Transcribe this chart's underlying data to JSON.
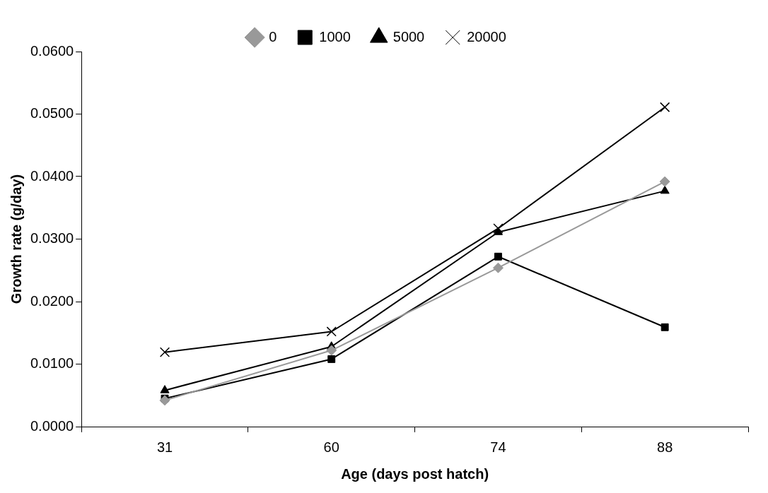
{
  "chart_data": {
    "type": "line",
    "xlabel": "Age (days post hatch)",
    "ylabel": "Growth rate (g/day)",
    "categories": [
      "31",
      "60",
      "74",
      "88"
    ],
    "series": [
      {
        "name": "0",
        "color": "#999999",
        "marker": "diamond",
        "values": [
          0.0042,
          0.0122,
          0.0254,
          0.0392
        ]
      },
      {
        "name": "1000",
        "color": "#000000",
        "marker": "square",
        "values": [
          0.0045,
          0.0108,
          0.0272,
          0.0159
        ]
      },
      {
        "name": "5000",
        "color": "#000000",
        "marker": "triangle",
        "values": [
          0.0058,
          0.0128,
          0.0311,
          0.0377
        ]
      },
      {
        "name": "20000",
        "color": "#000000",
        "marker": "cross",
        "values": [
          0.0119,
          0.0152,
          0.0317,
          0.0511
        ]
      }
    ],
    "ylim": [
      0,
      0.06
    ],
    "yticks": [
      {
        "value": 0,
        "label": "0.0000"
      },
      {
        "value": 0.01,
        "label": "0.0100"
      },
      {
        "value": 0.02,
        "label": "0.0200"
      },
      {
        "value": 0.03,
        "label": "0.0300"
      },
      {
        "value": 0.04,
        "label": "0.0400"
      },
      {
        "value": 0.05,
        "label": "0.0500"
      },
      {
        "value": 0.06,
        "label": "0.0600"
      }
    ],
    "grid": false,
    "legend": "top",
    "line_style": "solid"
  }
}
